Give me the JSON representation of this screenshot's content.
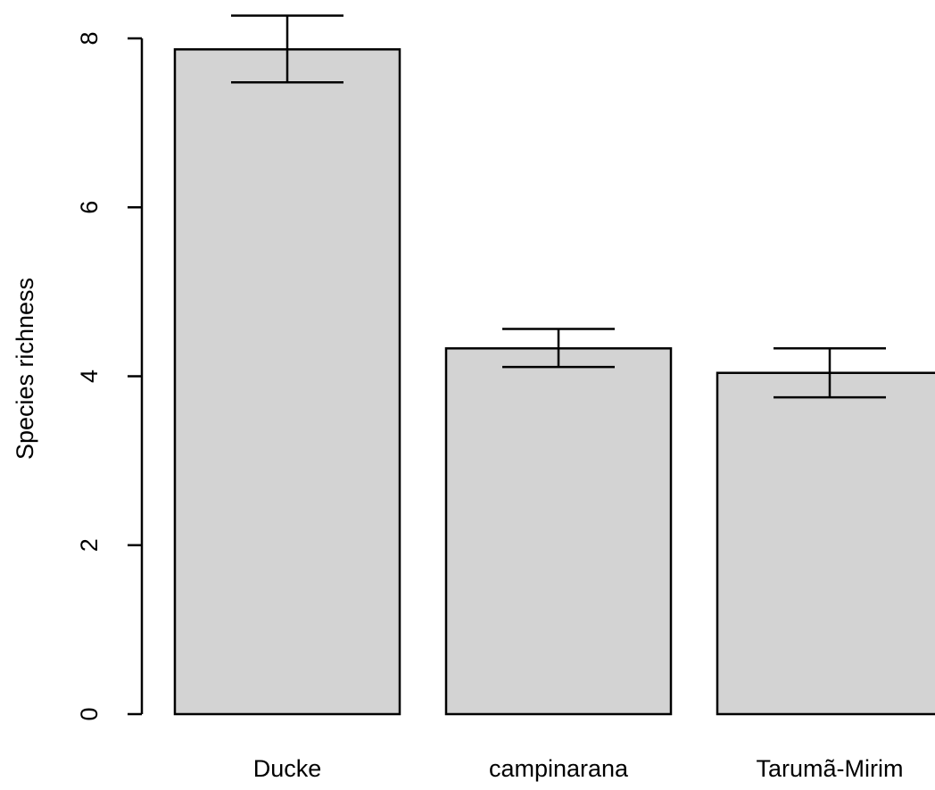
{
  "chart_data": {
    "type": "bar",
    "categories": [
      "Ducke",
      "campinarana",
      "Tarumã-Mirim"
    ],
    "values": [
      7.87,
      4.33,
      4.04
    ],
    "error_lower": [
      7.48,
      4.11,
      3.75
    ],
    "error_upper": [
      8.27,
      4.56,
      4.33
    ],
    "ylabel": "Species richness",
    "ylim": [
      0,
      8
    ],
    "yticks": [
      0,
      2,
      4,
      6,
      8
    ],
    "grid": false,
    "legend": "none",
    "bar_fill": "#d3d3d3",
    "bar_stroke": "#000000"
  }
}
